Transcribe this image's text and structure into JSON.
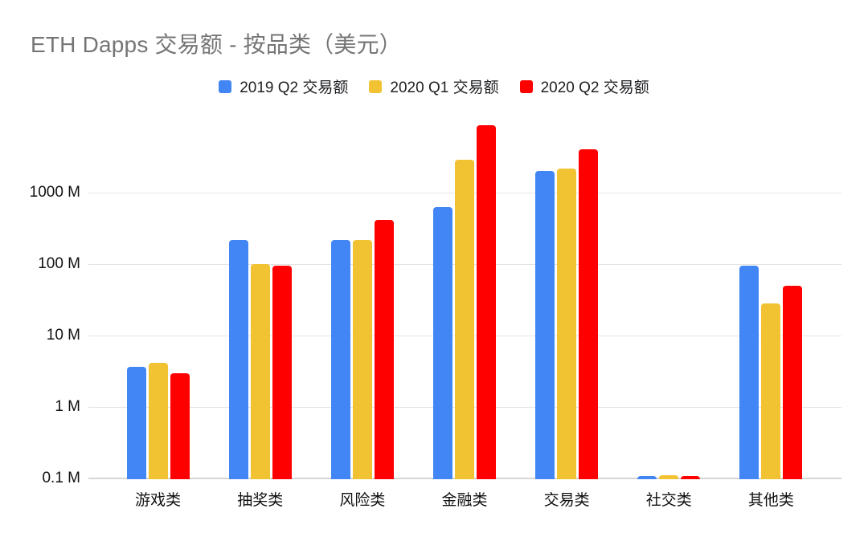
{
  "title": "ETH Dapps 交易额 - 按品类（美元）",
  "legend": [
    {
      "label": "2019 Q2 交易额",
      "color": "#4285F4"
    },
    {
      "label": "2020 Q1 交易额",
      "color": "#F1C232"
    },
    {
      "label": "2020 Q2 交易额",
      "color": "#FF0000"
    }
  ],
  "chart_data": {
    "type": "bar",
    "title": "ETH Dapps 交易额 - 按品类（美元）",
    "unit": "M (百万美元)",
    "scale": "log",
    "grid": true,
    "legend_position": "top",
    "categories": [
      "游戏类",
      "抽奖类",
      "风险类",
      "金融类",
      "交易类",
      "社交类",
      "其他类"
    ],
    "series": [
      {
        "name": "2019 Q2 交易额",
        "color": "#4285F4",
        "values": [
          3.6,
          220,
          220,
          630,
          2000,
          0.1,
          95
        ]
      },
      {
        "name": "2020 Q1 交易额",
        "color": "#F1C232",
        "values": [
          4.1,
          100,
          220,
          2900,
          2200,
          0.11,
          28
        ]
      },
      {
        "name": "2020 Q2 交易额",
        "color": "#FF0000",
        "values": [
          3.0,
          96,
          410,
          8800,
          4000,
          0.1,
          50
        ]
      }
    ],
    "y_ticks": [
      "0.1 M",
      "1 M",
      "10 M",
      "100 M",
      "1000 M"
    ],
    "y_tick_values": [
      0.1,
      1,
      10,
      100,
      1000
    ],
    "ylim": [
      0.1,
      12000
    ],
    "xlabel": "",
    "ylabel": ""
  }
}
